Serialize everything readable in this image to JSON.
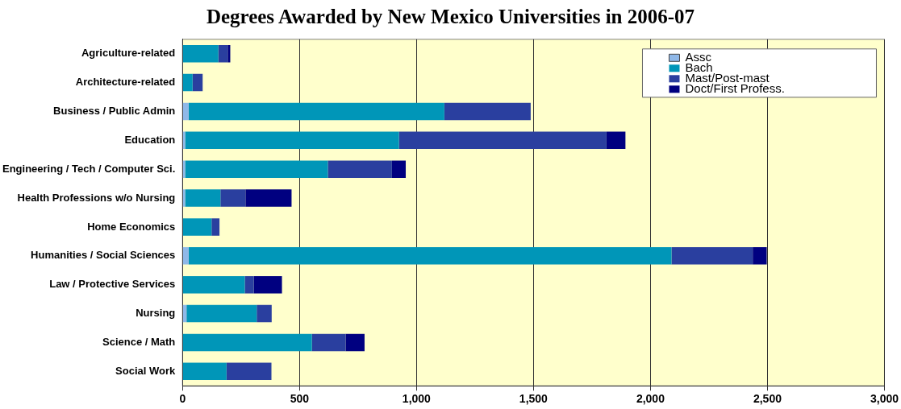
{
  "chart_data": {
    "type": "bar",
    "orientation": "horizontal",
    "stacked": true,
    "title": "Degrees Awarded by New Mexico Universities in 2006-07",
    "categories": [
      "Agriculture-related",
      "Architecture-related",
      "Business / Public Admin",
      "Education",
      "Engineering / Tech / Computer Sci.",
      "Health Professions w/o Nursing",
      "Home Economics",
      "Humanities / Social Sciences",
      "Law / Protective Services",
      "Nursing",
      "Science / Math",
      "Social Work"
    ],
    "series": [
      {
        "name": "Assc",
        "color": "#8fb8e8",
        "values": [
          0,
          0,
          26,
          11,
          11,
          11,
          0,
          26,
          null,
          17,
          0,
          0
        ]
      },
      {
        "name": "Bach",
        "color": "#0096b8",
        "values": [
          153,
          43,
          1093,
          914,
          610,
          151,
          124,
          2064,
          266,
          300,
          553,
          188
        ]
      },
      {
        "name": "Mast/Post-mast",
        "color": "#2a3f9f",
        "values": [
          40,
          43,
          369,
          887,
          274,
          107,
          34,
          347,
          39,
          64,
          144,
          192
        ]
      },
      {
        "name": "Doct/First Profess.",
        "color": "#000080",
        "values": [
          11,
          0,
          0,
          81,
          59,
          197,
          0,
          60,
          120,
          0,
          81,
          0
        ]
      }
    ],
    "xlim": [
      0,
      3000
    ],
    "xticks": [
      {
        "value": 0,
        "label": "0"
      },
      {
        "value": 500,
        "label": "500"
      },
      {
        "value": 1000,
        "label": "1,000"
      },
      {
        "value": 1500,
        "label": "1,500"
      },
      {
        "value": 2000,
        "label": "2,000"
      },
      {
        "value": 2500,
        "label": "2,500"
      },
      {
        "value": 3000,
        "label": "3,000"
      }
    ],
    "grid": "x",
    "legend": "top right"
  }
}
